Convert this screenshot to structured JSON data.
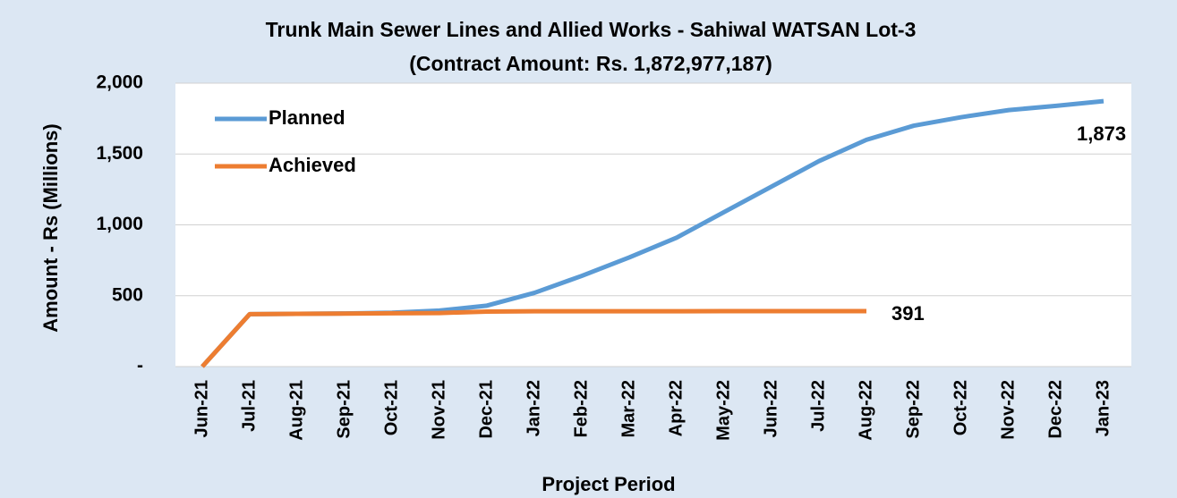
{
  "chart_data": {
    "type": "line",
    "title": "Trunk Main Sewer Lines and Allied Works - Sahiwal WATSAN Lot-3",
    "subtitle": "(Contract Amount: Rs. 1,872,977,187)",
    "y_label": "Amount - Rs (Millions)",
    "x_label": "Project Period",
    "categories": [
      "Jun-21",
      "Jul-21",
      "Aug-21",
      "Sep-21",
      "Oct-21",
      "Nov-21",
      "Dec-21",
      "Jan-22",
      "Feb-22",
      "Mar-22",
      "Apr-22",
      "May-22",
      "Jun-22",
      "Jul-22",
      "Aug-22",
      "Sep-22",
      "Oct-22",
      "Nov-22",
      "Dec-22",
      "Jan-23"
    ],
    "series": [
      {
        "name": "Planned",
        "color": "#5b9bd5",
        "values": [
          0,
          370,
          372,
          375,
          380,
          395,
          430,
          520,
          640,
          770,
          910,
          1090,
          1270,
          1450,
          1600,
          1700,
          1760,
          1810,
          1840,
          1873
        ],
        "value_labels": [
          null,
          null,
          null,
          null,
          null,
          null,
          null,
          null,
          null,
          null,
          null,
          null,
          null,
          null,
          null,
          null,
          null,
          null,
          null,
          "1,873"
        ]
      },
      {
        "name": "Achieved",
        "color": "#ed7d31",
        "values": [
          0,
          370,
          372,
          374,
          376,
          378,
          388,
          390,
          390,
          390,
          390,
          391,
          391,
          391,
          391,
          null,
          null,
          null,
          null,
          null
        ],
        "value_labels": [
          null,
          null,
          null,
          null,
          null,
          null,
          null,
          null,
          null,
          null,
          null,
          null,
          null,
          null,
          "391",
          null,
          null,
          null,
          null,
          null
        ]
      }
    ],
    "ylim": [
      0,
      2000
    ],
    "yticks": [
      {
        "value": 0,
        "label": "-"
      },
      500,
      {
        "value": 1000,
        "label": "1,000"
      },
      {
        "value": 1500,
        "label": "1,500"
      },
      {
        "value": 2000,
        "label": "2,000"
      }
    ],
    "grid": true,
    "legend": "top-left"
  }
}
